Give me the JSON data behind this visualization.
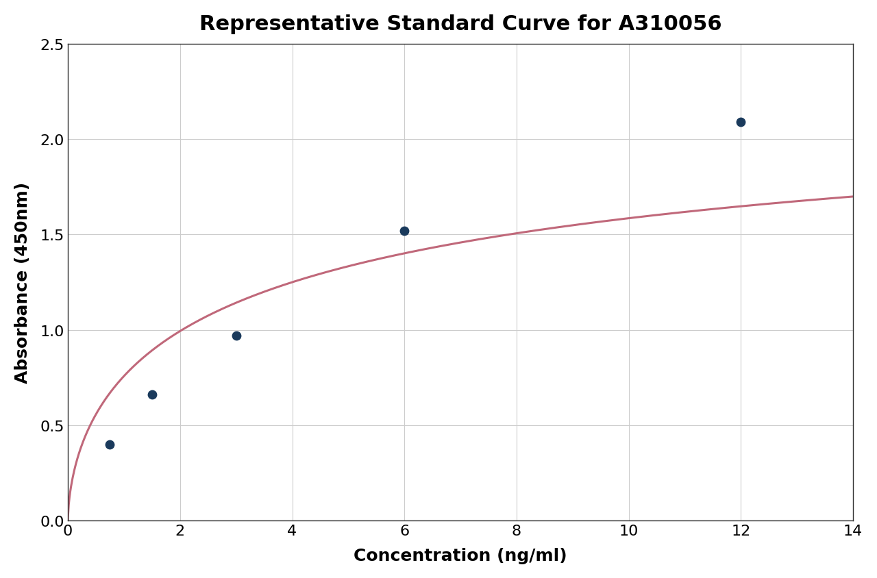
{
  "title": "Representative Standard Curve for A310056",
  "xlabel": "Concentration (ng/ml)",
  "ylabel": "Absorbance (450nm)",
  "xlim": [
    0,
    14
  ],
  "ylim": [
    0.0,
    2.5
  ],
  "xticks": [
    0,
    2,
    4,
    6,
    8,
    10,
    12,
    14
  ],
  "yticks": [
    0.0,
    0.5,
    1.0,
    1.5,
    2.0,
    2.5
  ],
  "data_x": [
    0.75,
    1.5,
    3.0,
    6.0,
    12.0
  ],
  "data_y": [
    0.4,
    0.66,
    0.97,
    1.52,
    2.09
  ],
  "dot_color": "#1a3a5c",
  "dot_size": 80,
  "curve_color": "#c0687a",
  "curve_linewidth": 2.2,
  "bg_color": "#ffffff",
  "grid_color": "#cccccc",
  "title_fontsize": 22,
  "label_fontsize": 18,
  "tick_fontsize": 16,
  "title_fontweight": "bold",
  "label_fontweight": "bold"
}
